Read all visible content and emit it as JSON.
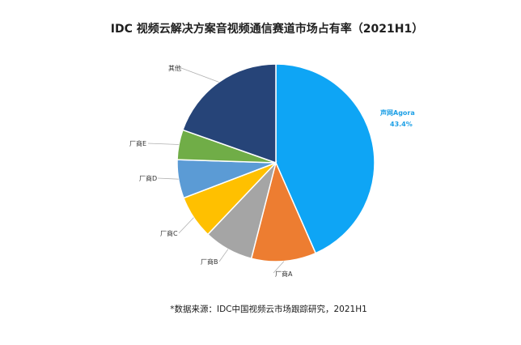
{
  "chart_data": {
    "type": "pie",
    "title": "IDC 视频云解决方案音视频通信赛道市场占有率（2021H1）",
    "source": "*数据来源：IDC中国视频云市场跟踪研究，2021H1",
    "slices": [
      {
        "label": "声网Agora",
        "value": 43.4,
        "value_label": "43.4%",
        "color": "#0ea5f5",
        "highlight": true
      },
      {
        "label": "厂商A",
        "value": 10.6,
        "color": "#ed7d31"
      },
      {
        "label": "厂商B",
        "value": 8.1,
        "color": "#a5a5a5"
      },
      {
        "label": "厂商C",
        "value": 7.1,
        "color": "#ffc000"
      },
      {
        "label": "厂商D",
        "value": 6.3,
        "color": "#5b9bd5"
      },
      {
        "label": "厂商E",
        "value": 4.9,
        "color": "#70ad47"
      },
      {
        "label": "其他",
        "value": 19.6,
        "color": "#264478"
      }
    ],
    "start_angle": "12 o'clock",
    "direction": "clockwise",
    "legend": "none"
  }
}
